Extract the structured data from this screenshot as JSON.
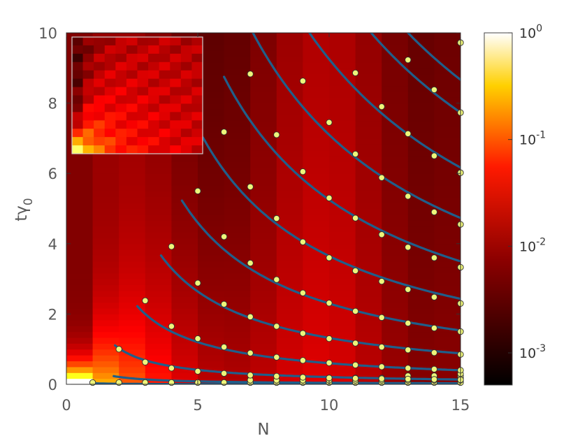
{
  "chart_data": {
    "type": "heatmap",
    "xlabel": "N",
    "ylabel": "tγ0",
    "xlim": [
      0,
      15
    ],
    "ylim": [
      0,
      10
    ],
    "xticks": [
      0,
      5,
      10,
      15
    ],
    "yticks": [
      0,
      2,
      4,
      6,
      8,
      10
    ],
    "colorbar": {
      "scale": "log",
      "colormap": "hot",
      "range": [
        0.0005,
        1
      ],
      "tick_labels": [
        {
          "value": 1,
          "base": "10",
          "exp": "0"
        },
        {
          "value": 0.1,
          "base": "10",
          "exp": "-1"
        },
        {
          "value": 0.01,
          "base": "10",
          "exp": "-2"
        },
        {
          "value": 0.001,
          "base": "10",
          "exp": "-3"
        }
      ]
    },
    "inset": {
      "type": "heatmap",
      "description_shown": false
    },
    "curves": {
      "color": "#1f5f8b",
      "series": [
        {
          "k": 0.03,
          "x_start": 1.0
        },
        {
          "k": 0.42,
          "x_start": 1.8
        },
        {
          "k": 2.05,
          "x_start": 1.85
        },
        {
          "k": 6.0,
          "x_start": 2.7
        },
        {
          "k": 13.2,
          "x_start": 3.6
        },
        {
          "k": 23.0,
          "x_start": 4.4
        },
        {
          "k": 36.5,
          "x_start": 5.2
        },
        {
          "k": 52.5,
          "x_start": 6.0
        },
        {
          "k": 71.0,
          "x_start": 6.9
        },
        {
          "k": 92.5,
          "x_start": 7.8
        },
        {
          "k": 116.0,
          "x_start": 8.8
        },
        {
          "k": 130.0,
          "x_start": 9.0
        }
      ]
    },
    "points": {
      "color": "#eef57a",
      "stroke": "#2f2f2f",
      "xy": [
        [
          1,
          0.05
        ],
        [
          2,
          0.05
        ],
        [
          3,
          0.05
        ],
        [
          4,
          0.05
        ],
        [
          5,
          0.05
        ],
        [
          6,
          0.05
        ],
        [
          7,
          0.05
        ],
        [
          8,
          0.05
        ],
        [
          9,
          0.05
        ],
        [
          10,
          0.05
        ],
        [
          11,
          0.05
        ],
        [
          12,
          0.05
        ],
        [
          13,
          0.05
        ],
        [
          14,
          0.05
        ],
        [
          15,
          0.05
        ],
        [
          7,
          0.12
        ],
        [
          8,
          0.12
        ],
        [
          9,
          0.12
        ],
        [
          10,
          0.12
        ],
        [
          11,
          0.12
        ],
        [
          12,
          0.12
        ],
        [
          13,
          0.12
        ],
        [
          14,
          0.12
        ],
        [
          15,
          0.12
        ],
        [
          10,
          0.18
        ],
        [
          11,
          0.18
        ],
        [
          12,
          0.18
        ],
        [
          13,
          0.18
        ],
        [
          14,
          0.18
        ],
        [
          15,
          0.18
        ],
        [
          13,
          0.24
        ],
        [
          14,
          0.24
        ],
        [
          15,
          0.24
        ],
        [
          15,
          0.3
        ],
        [
          2,
          1.0
        ],
        [
          3,
          0.63
        ],
        [
          4,
          0.46
        ],
        [
          5,
          0.37
        ],
        [
          6,
          0.31
        ],
        [
          7,
          0.26
        ],
        [
          8,
          0.23
        ],
        [
          9,
          0.2
        ],
        [
          10,
          0.18
        ],
        [
          11,
          0.17
        ],
        [
          12,
          0.16
        ],
        [
          13,
          0.15
        ],
        [
          14,
          0.14
        ],
        [
          15,
          0.13
        ],
        [
          3,
          2.38
        ],
        [
          4,
          1.65
        ],
        [
          5,
          1.3
        ],
        [
          6,
          1.06
        ],
        [
          7,
          0.89
        ],
        [
          8,
          0.77
        ],
        [
          9,
          0.68
        ],
        [
          10,
          0.61
        ],
        [
          11,
          0.55
        ],
        [
          12,
          0.5
        ],
        [
          13,
          0.46
        ],
        [
          14,
          0.43
        ],
        [
          15,
          0.4
        ],
        [
          4,
          3.92
        ],
        [
          5,
          2.88
        ],
        [
          6,
          2.28
        ],
        [
          7,
          1.92
        ],
        [
          8,
          1.65
        ],
        [
          9,
          1.45
        ],
        [
          10,
          1.3
        ],
        [
          11,
          1.17
        ],
        [
          12,
          1.06
        ],
        [
          13,
          0.98
        ],
        [
          14,
          0.9
        ],
        [
          15,
          0.85
        ],
        [
          5,
          5.5
        ],
        [
          6,
          4.2
        ],
        [
          7,
          3.45
        ],
        [
          8,
          2.98
        ],
        [
          9,
          2.6
        ],
        [
          10,
          2.31
        ],
        [
          11,
          2.08
        ],
        [
          12,
          1.9
        ],
        [
          13,
          1.74
        ],
        [
          14,
          1.6
        ],
        [
          15,
          1.5
        ],
        [
          6,
          7.18
        ],
        [
          7,
          5.62
        ],
        [
          8,
          4.72
        ],
        [
          9,
          4.05
        ],
        [
          10,
          3.6
        ],
        [
          11,
          3.23
        ],
        [
          12,
          2.93
        ],
        [
          13,
          2.7
        ],
        [
          14,
          2.48
        ],
        [
          15,
          2.3
        ],
        [
          7,
          8.83
        ],
        [
          8,
          7.1
        ],
        [
          9,
          6.05
        ],
        [
          10,
          5.3
        ],
        [
          11,
          4.73
        ],
        [
          12,
          4.26
        ],
        [
          13,
          3.9
        ],
        [
          14,
          3.6
        ],
        [
          15,
          3.33
        ],
        [
          9,
          8.63
        ],
        [
          10,
          7.45
        ],
        [
          11,
          6.55
        ],
        [
          12,
          5.88
        ],
        [
          13,
          5.35
        ],
        [
          14,
          4.9
        ],
        [
          15,
          4.55
        ],
        [
          11,
          8.86
        ],
        [
          12,
          7.9
        ],
        [
          13,
          7.13
        ],
        [
          14,
          6.5
        ],
        [
          15,
          6.02
        ],
        [
          13,
          9.23
        ],
        [
          14,
          8.38
        ],
        [
          15,
          7.73
        ],
        [
          15,
          9.72
        ]
      ]
    }
  }
}
